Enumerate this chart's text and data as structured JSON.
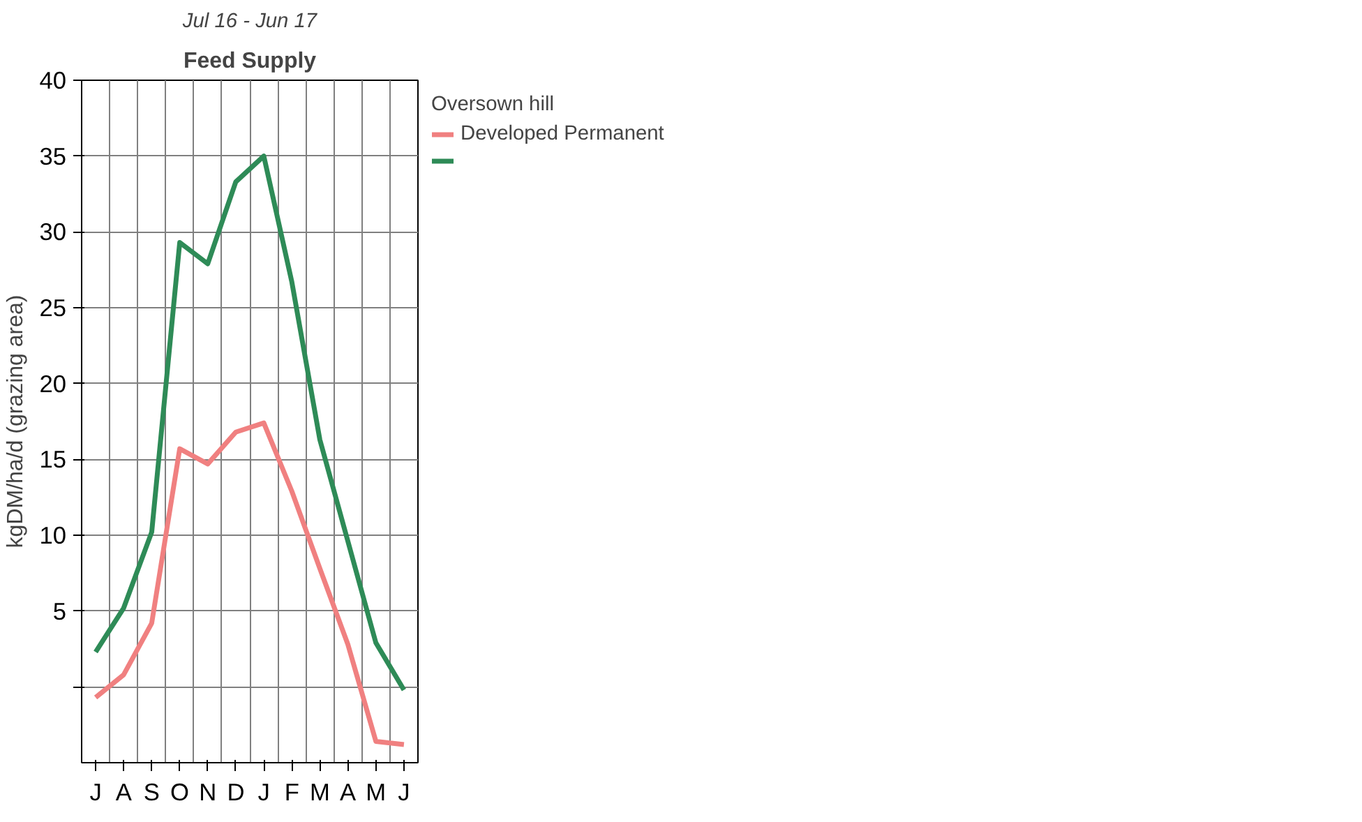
{
  "chart_data": {
    "type": "line",
    "title": "Feed Supply",
    "subtitle": "Jul 16 - Jun 17",
    "ylabel": "kgDM/ha/d (grazing area)",
    "legend_title": "Oversown hill",
    "categories": [
      "J",
      "A",
      "S",
      "O",
      "N",
      "D",
      "J",
      "F",
      "M",
      "A",
      "M",
      "J"
    ],
    "series": [
      {
        "name": "Developed Permanent",
        "color": "#f08080",
        "values": [
          -0.7,
          0.8,
          4.2,
          15.7,
          14.7,
          16.8,
          17.4,
          12.9,
          7.8,
          2.8,
          -3.6,
          -3.8
        ]
      },
      {
        "color": "#2e8b57",
        "values": [
          2.3,
          5.2,
          10.2,
          29.3,
          27.9,
          33.3,
          35,
          26.7,
          16.3,
          9.6,
          2.9,
          -0.2
        ]
      }
    ],
    "ylim": [
      -5,
      40
    ],
    "yticks": [
      {
        "value": 0,
        "label": null
      },
      5,
      10,
      15,
      20,
      25,
      30,
      35,
      40
    ],
    "grid": true,
    "legend": "right",
    "marker": "none",
    "line_style": "solid"
  }
}
